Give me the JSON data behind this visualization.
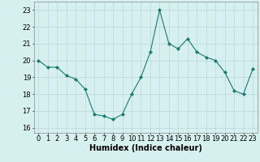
{
  "x": [
    0,
    1,
    2,
    3,
    4,
    5,
    6,
    7,
    8,
    9,
    10,
    11,
    12,
    13,
    14,
    15,
    16,
    17,
    18,
    19,
    20,
    21,
    22,
    23
  ],
  "y": [
    20.0,
    19.6,
    19.6,
    19.1,
    18.9,
    18.3,
    16.8,
    16.7,
    16.5,
    16.8,
    18.0,
    19.0,
    20.5,
    23.0,
    21.0,
    20.7,
    21.3,
    20.5,
    20.2,
    20.0,
    19.3,
    18.2,
    18.0,
    19.5
  ],
  "title": "",
  "xlabel": "Humidex (Indice chaleur)",
  "ylabel": "",
  "xlim": [
    -0.5,
    23.5
  ],
  "ylim": [
    15.7,
    23.5
  ],
  "yticks": [
    16,
    17,
    18,
    19,
    20,
    21,
    22,
    23
  ],
  "xticks": [
    0,
    1,
    2,
    3,
    4,
    5,
    6,
    7,
    8,
    9,
    10,
    11,
    12,
    13,
    14,
    15,
    16,
    17,
    18,
    19,
    20,
    21,
    22,
    23
  ],
  "line_color": "#1a7a6e",
  "marker_color": "#1a7a6e",
  "bg_color": "#d6f0f0",
  "grid_color": "#b8d8d8",
  "label_fontsize": 7,
  "tick_fontsize": 6
}
